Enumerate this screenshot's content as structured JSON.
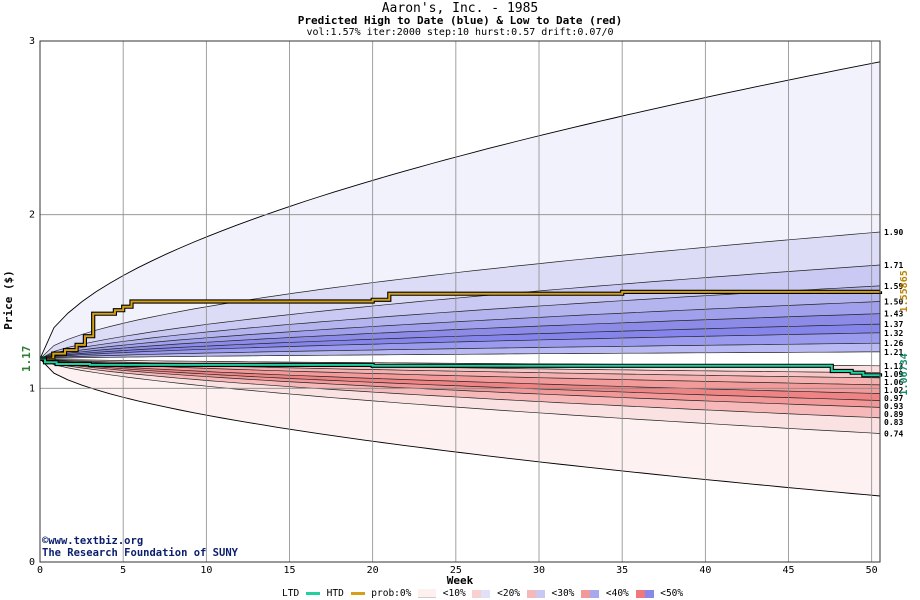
{
  "header": {
    "title": "Aaron's, Inc. - 1985",
    "subtitle": "Predicted High to Date (blue) &  Low to Date (red)",
    "params": "vol:1.57% iter:2000 step:10 hurst:0.57 drift:0.07/0"
  },
  "credit": {
    "site": "www.textbiz.org",
    "org": "The Research Foundation of SUNY"
  },
  "legend": {
    "ltd": "LTD",
    "htd": "HTD",
    "prob": "prob:0%",
    "b10": "<10%",
    "b20": "<20%",
    "b30": "<30%",
    "b40": "<40%",
    "b50": "<50%"
  },
  "chart_data": {
    "type": "area",
    "xlabel": "Week",
    "ylabel": "Price ($)",
    "xlim": [
      0,
      50.5
    ],
    "ylim": [
      0,
      3
    ],
    "x_ticks": [
      0,
      5,
      10,
      15,
      20,
      25,
      30,
      35,
      40,
      45,
      50
    ],
    "y_ticks": [
      0,
      1,
      2,
      3
    ],
    "grid": true,
    "start_price": 1.17,
    "start_label": "1.17",
    "htd_final_label": "1.55865",
    "ltd_final_label": "1.06734",
    "right_labels": [
      "1.90",
      "1.71",
      "1.59",
      "1.50",
      "1.43",
      "1.37",
      "1.32",
      "1.26",
      "1.21",
      "1.13",
      "1.09",
      "1.06",
      "1.02",
      "0.97",
      "0.93",
      "0.89",
      "0.83",
      "0.74"
    ],
    "upper_bands": [
      {
        "end": 2.88,
        "label": ""
      },
      {
        "end": 1.9,
        "label": "1.90"
      },
      {
        "end": 1.71,
        "label": "1.71"
      },
      {
        "end": 1.59,
        "label": "1.59"
      },
      {
        "end": 1.5,
        "label": "1.50"
      },
      {
        "end": 1.43,
        "label": "1.43"
      },
      {
        "end": 1.37,
        "label": "1.37"
      },
      {
        "end": 1.32,
        "label": "1.32"
      },
      {
        "end": 1.26,
        "label": "1.26"
      },
      {
        "end": 1.21,
        "label": "1.21"
      }
    ],
    "lower_bands": [
      {
        "end": 1.13,
        "label": "1.13"
      },
      {
        "end": 1.09,
        "label": "1.09"
      },
      {
        "end": 1.06,
        "label": "1.06"
      },
      {
        "end": 1.02,
        "label": "1.02"
      },
      {
        "end": 0.97,
        "label": "0.97"
      },
      {
        "end": 0.93,
        "label": "0.93"
      },
      {
        "end": 0.89,
        "label": "0.89"
      },
      {
        "end": 0.83,
        "label": "0.83"
      },
      {
        "end": 0.74,
        "label": "0.74"
      },
      {
        "end": 0.38,
        "label": ""
      }
    ],
    "band_colors_upper": [
      "#f2f2fc",
      "#dcdcf7",
      "#c9c9f3",
      "#b4b4ef",
      "#a0a0ec",
      "#8c8ce8",
      "#8585ec",
      "#9a9aee",
      "#b9b9f3"
    ],
    "band_colors_lower": [
      "#fbdede",
      "#f8c6c6",
      "#f5b0b0",
      "#f39a9a",
      "#f08484",
      "#f39898",
      "#f6b8b8",
      "#fae2e2",
      "#fdf1f1"
    ],
    "series": [
      {
        "name": "HTD",
        "color": "#d4a017",
        "points": [
          [
            0,
            1.17
          ],
          [
            0.8,
            1.2
          ],
          [
            1.5,
            1.22
          ],
          [
            2.2,
            1.25
          ],
          [
            2.7,
            1.3
          ],
          [
            3.2,
            1.43
          ],
          [
            4.5,
            1.45
          ],
          [
            5,
            1.47
          ],
          [
            5.5,
            1.5
          ],
          [
            20,
            1.51
          ],
          [
            21,
            1.545
          ],
          [
            35,
            1.555
          ],
          [
            50.5,
            1.55865
          ]
        ]
      },
      {
        "name": "LTD",
        "color": "#20d0a0",
        "points": [
          [
            0,
            1.17
          ],
          [
            0.3,
            1.15
          ],
          [
            1,
            1.14
          ],
          [
            3,
            1.135
          ],
          [
            20,
            1.13
          ],
          [
            40,
            1.13
          ],
          [
            47.5,
            1.13
          ],
          [
            47.6,
            1.1
          ],
          [
            48.8,
            1.09
          ],
          [
            49.5,
            1.075
          ],
          [
            50.5,
            1.06734
          ]
        ]
      }
    ]
  }
}
